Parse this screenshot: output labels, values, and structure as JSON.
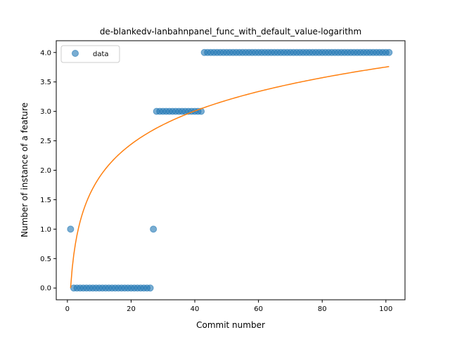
{
  "chart_data": {
    "type": "scatter",
    "title": "de-blankedv-lanbahnpanel_func_with_default_value-logarithm",
    "xlabel": "Commit number",
    "ylabel": "Number of instance of a feature",
    "xlim": [
      -3.5,
      106
    ],
    "ylim": [
      -0.2,
      4.2
    ],
    "xticks": [
      0,
      20,
      40,
      60,
      80,
      100
    ],
    "yticks": [
      0.0,
      0.5,
      1.0,
      1.5,
      2.0,
      2.5,
      3.0,
      3.5,
      4.0
    ],
    "xtick_labels": [
      "0",
      "20",
      "40",
      "60",
      "80",
      "100"
    ],
    "ytick_labels": [
      "0.0",
      "0.5",
      "1.0",
      "1.5",
      "2.0",
      "2.5",
      "3.0",
      "3.5",
      "4.0"
    ],
    "grid": false,
    "legend_position": "top-left",
    "series": [
      {
        "name": "data",
        "kind": "scatter",
        "color": "#1f77b4",
        "x": [
          1,
          2,
          3,
          4,
          5,
          6,
          7,
          8,
          9,
          10,
          11,
          12,
          13,
          14,
          15,
          16,
          17,
          18,
          19,
          20,
          21,
          22,
          23,
          24,
          25,
          26,
          27,
          28,
          29,
          30,
          31,
          32,
          33,
          34,
          35,
          36,
          37,
          38,
          39,
          40,
          41,
          42,
          43,
          44,
          45,
          46,
          47,
          48,
          49,
          50,
          51,
          52,
          53,
          54,
          55,
          56,
          57,
          58,
          59,
          60,
          61,
          62,
          63,
          64,
          65,
          66,
          67,
          68,
          69,
          70,
          71,
          72,
          73,
          74,
          75,
          76,
          77,
          78,
          79,
          80,
          81,
          82,
          83,
          84,
          85,
          86,
          87,
          88,
          89,
          90,
          91,
          92,
          93,
          94,
          95,
          96,
          97,
          98,
          99,
          100,
          101
        ],
        "y": [
          1,
          0,
          0,
          0,
          0,
          0,
          0,
          0,
          0,
          0,
          0,
          0,
          0,
          0,
          0,
          0,
          0,
          0,
          0,
          0,
          0,
          0,
          0,
          0,
          0,
          0,
          1,
          3,
          3,
          3,
          3,
          3,
          3,
          3,
          3,
          3,
          3,
          3,
          3,
          3,
          3,
          3,
          4,
          4,
          4,
          4,
          4,
          4,
          4,
          4,
          4,
          4,
          4,
          4,
          4,
          4,
          4,
          4,
          4,
          4,
          4,
          4,
          4,
          4,
          4,
          4,
          4,
          4,
          4,
          4,
          4,
          4,
          4,
          4,
          4,
          4,
          4,
          4,
          4,
          4,
          4,
          4,
          4,
          4,
          4,
          4,
          4,
          4,
          4,
          4,
          4,
          4,
          4,
          4,
          4,
          4,
          4,
          4,
          4,
          4,
          4
        ]
      },
      {
        "kind": "line",
        "color": "#ff7f0e",
        "fit": "logarithmic",
        "a": 0.815,
        "x_range": [
          1,
          101
        ]
      }
    ]
  }
}
